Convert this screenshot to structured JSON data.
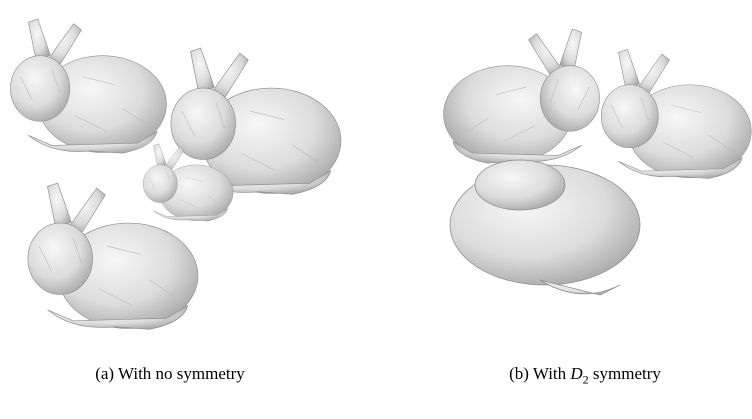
{
  "panels": [
    {
      "caption": {
        "prefix": "(a) With no symmetry"
      }
    },
    {
      "caption": {
        "prefix": "(b) With ",
        "math": "D",
        "sub": "2",
        "suffix": " symmetry"
      }
    }
  ]
}
